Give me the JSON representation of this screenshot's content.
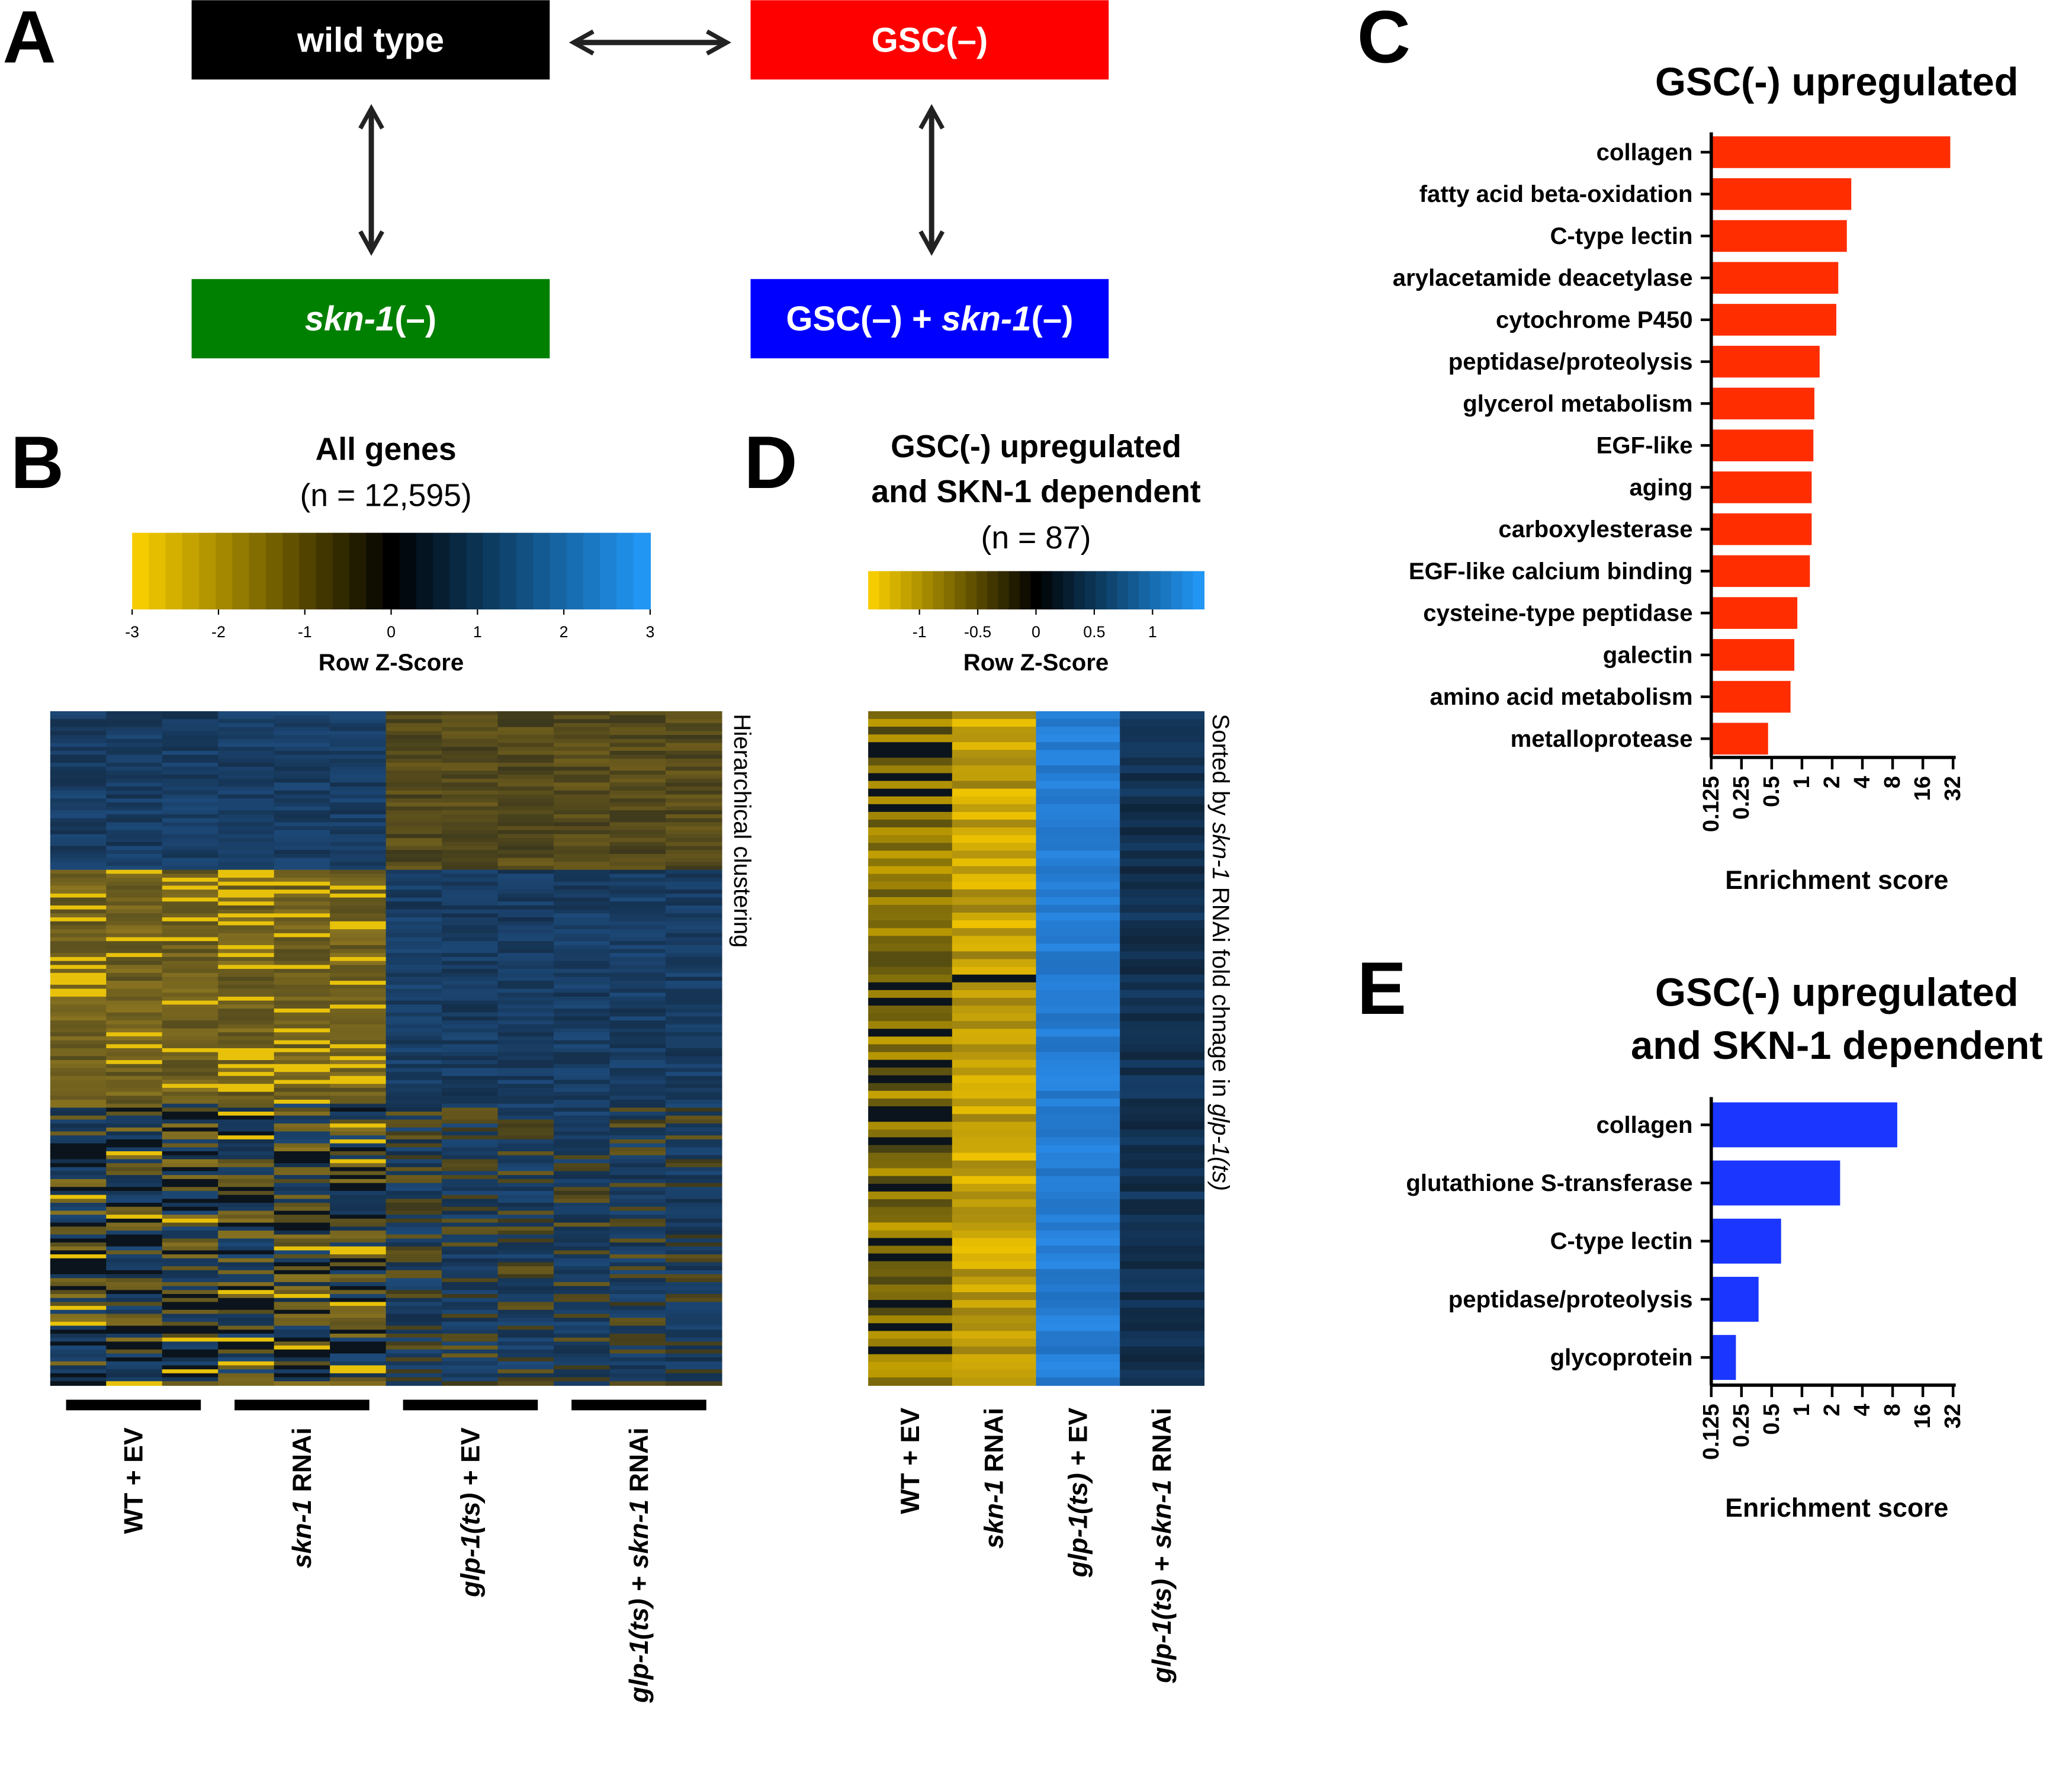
{
  "panels": {
    "A": {
      "letter": "A",
      "nodes": [
        {
          "label": [
            {
              "text": "wild type"
            }
          ],
          "color": "#000000"
        },
        {
          "label": [
            {
              "text": "GSC(–)"
            }
          ],
          "color": "#ff0000"
        },
        {
          "label": [
            {
              "text": "skn-1",
              "italic": true
            },
            {
              "text": "(–)"
            }
          ],
          "color": "#008000"
        },
        {
          "label": [
            {
              "text": "GSC(–) + "
            },
            {
              "text": "skn-1",
              "italic": true
            },
            {
              "text": "(–)"
            }
          ],
          "color": "#0000ff"
        }
      ]
    },
    "B": {
      "letter": "B",
      "title": "All genes",
      "subtitle": "(n = 12,595)",
      "side_label": [
        {
          "text": "Hierarchical clustering"
        }
      ],
      "columns": [
        [
          {
            "text": "WT + EV"
          }
        ],
        [
          {
            "text": "skn-1",
            "italic": true
          },
          {
            "text": " RNAi"
          }
        ],
        [
          {
            "text": "glp-1(ts)",
            "italic": true
          },
          {
            "text": " + EV"
          }
        ],
        [
          {
            "text": "glp-1(ts)",
            "italic": true
          },
          {
            "text": " + "
          },
          {
            "text": "skn-1",
            "italic": true
          },
          {
            "text": " RNAi"
          }
        ]
      ]
    },
    "D": {
      "letter": "D",
      "title": [
        "GSC(-) upregulated",
        "and SKN-1 dependent"
      ],
      "subtitle": "(n = 87)",
      "side_label": [
        {
          "text": "Sorted by "
        },
        {
          "text": "skn-1",
          "italic": true
        },
        {
          "text": " RNAi fold chnage in "
        },
        {
          "text": "glp-1(ts)",
          "italic": true
        }
      ],
      "columns": [
        [
          {
            "text": "WT + EV"
          }
        ],
        [
          {
            "text": "skn-1",
            "italic": true
          },
          {
            "text": " RNAi"
          }
        ],
        [
          {
            "text": "glp-1(ts)",
            "italic": true
          },
          {
            "text": " + EV"
          }
        ],
        [
          {
            "text": "glp-1(ts)",
            "italic": true
          },
          {
            "text": " + "
          },
          {
            "text": "skn-1",
            "italic": true
          },
          {
            "text": " RNAi"
          }
        ]
      ]
    }
  },
  "chart_data": [
    {
      "type": "colorbar",
      "label": "Row Z-Score",
      "xlim": [
        -3,
        3
      ],
      "xticks": [
        -3,
        -2,
        -1,
        0,
        1,
        2,
        3
      ],
      "colors": [
        "#f5cc00",
        "#000000",
        "#2196f3"
      ]
    },
    {
      "type": "colorbar",
      "label": "Row Z-Score",
      "xlim": [
        -1.44,
        1.44
      ],
      "xticks": [
        -1,
        -0.5,
        0,
        0.5,
        1
      ],
      "colors": [
        "#f5cc00",
        "#000000",
        "#2196f3"
      ]
    },
    {
      "type": "bar",
      "orientation": "horizontal",
      "panel": "C",
      "title": [
        "GSC(-) upregulated"
      ],
      "categories": [
        "collagen",
        "fatty acid beta-oxidation",
        "C-type lectin",
        "arylacetamide deacetylase",
        "cytochrome P450",
        "peptidase/proteolysis",
        "glycerol metabolism",
        "EGF-like",
        "aging",
        "carboxylesterase",
        "EGF-like calcium binding",
        "cysteine-type peptidase",
        "galectin",
        "amino acid metabolism",
        "metalloprotease"
      ],
      "values": [
        30,
        3.1,
        2.8,
        2.3,
        2.2,
        1.5,
        1.33,
        1.3,
        1.25,
        1.25,
        1.2,
        0.9,
        0.84,
        0.77,
        0.46
      ],
      "color": "#ff2d00",
      "xlabel": "Enrichment score",
      "xscale": "log2",
      "xlim": [
        0.125,
        32
      ],
      "xticks": [
        0.125,
        0.25,
        0.5,
        1,
        2,
        4,
        8,
        16,
        32
      ]
    },
    {
      "type": "bar",
      "orientation": "horizontal",
      "panel": "E",
      "title": [
        "GSC(-) upregulated",
        "and SKN-1 dependent"
      ],
      "categories": [
        "collagen",
        "glutathione S-transferase",
        "C-type lectin",
        "peptidase/proteolysis",
        "glycoprotein"
      ],
      "values": [
        8.9,
        2.4,
        0.62,
        0.37,
        0.22
      ],
      "color": "#1a36ff",
      "xlabel": "Enrichment score",
      "xscale": "log2",
      "xlim": [
        0.125,
        32
      ],
      "xticks": [
        0.125,
        0.25,
        0.5,
        1,
        2,
        4,
        8,
        16,
        32
      ]
    }
  ]
}
